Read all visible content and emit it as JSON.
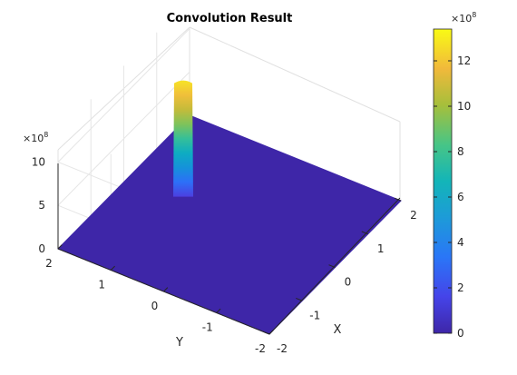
{
  "chart_data": {
    "type": "surface",
    "title": "Convolution Result",
    "xlabel": "X",
    "ylabel": "Y",
    "zlabel": "",
    "xlim": [
      -2,
      2
    ],
    "ylim": [
      -2,
      2
    ],
    "zlim": [
      0,
      13.4
    ],
    "x_ticks": [
      "-2",
      "-1",
      "0",
      "1",
      "2"
    ],
    "y_ticks": [
      "-2",
      "-1",
      "0",
      "1",
      "2"
    ],
    "z_ticks": [
      "0",
      "5",
      "10"
    ],
    "z_exponent": {
      "base": "×10",
      "power": "8"
    },
    "colorbar": {
      "ticks": [
        "0",
        "2",
        "4",
        "6",
        "8",
        "10",
        "12"
      ],
      "exponent": {
        "base": "×10",
        "power": "8"
      },
      "min": 0,
      "max": 13.4,
      "colormap": "parula"
    },
    "surface": {
      "baseline_value": 0,
      "peak": {
        "x": 0.2,
        "y": 1.0,
        "value": 13.4
      },
      "description_values": "flat surface at 0 with a narrow spike near (x≈0.2, y≈1.0) reaching ≈13.4×10^8"
    },
    "grid": true,
    "colors": {
      "parula_low": "#3e26a8",
      "parula_high": "#f9fb15"
    }
  }
}
